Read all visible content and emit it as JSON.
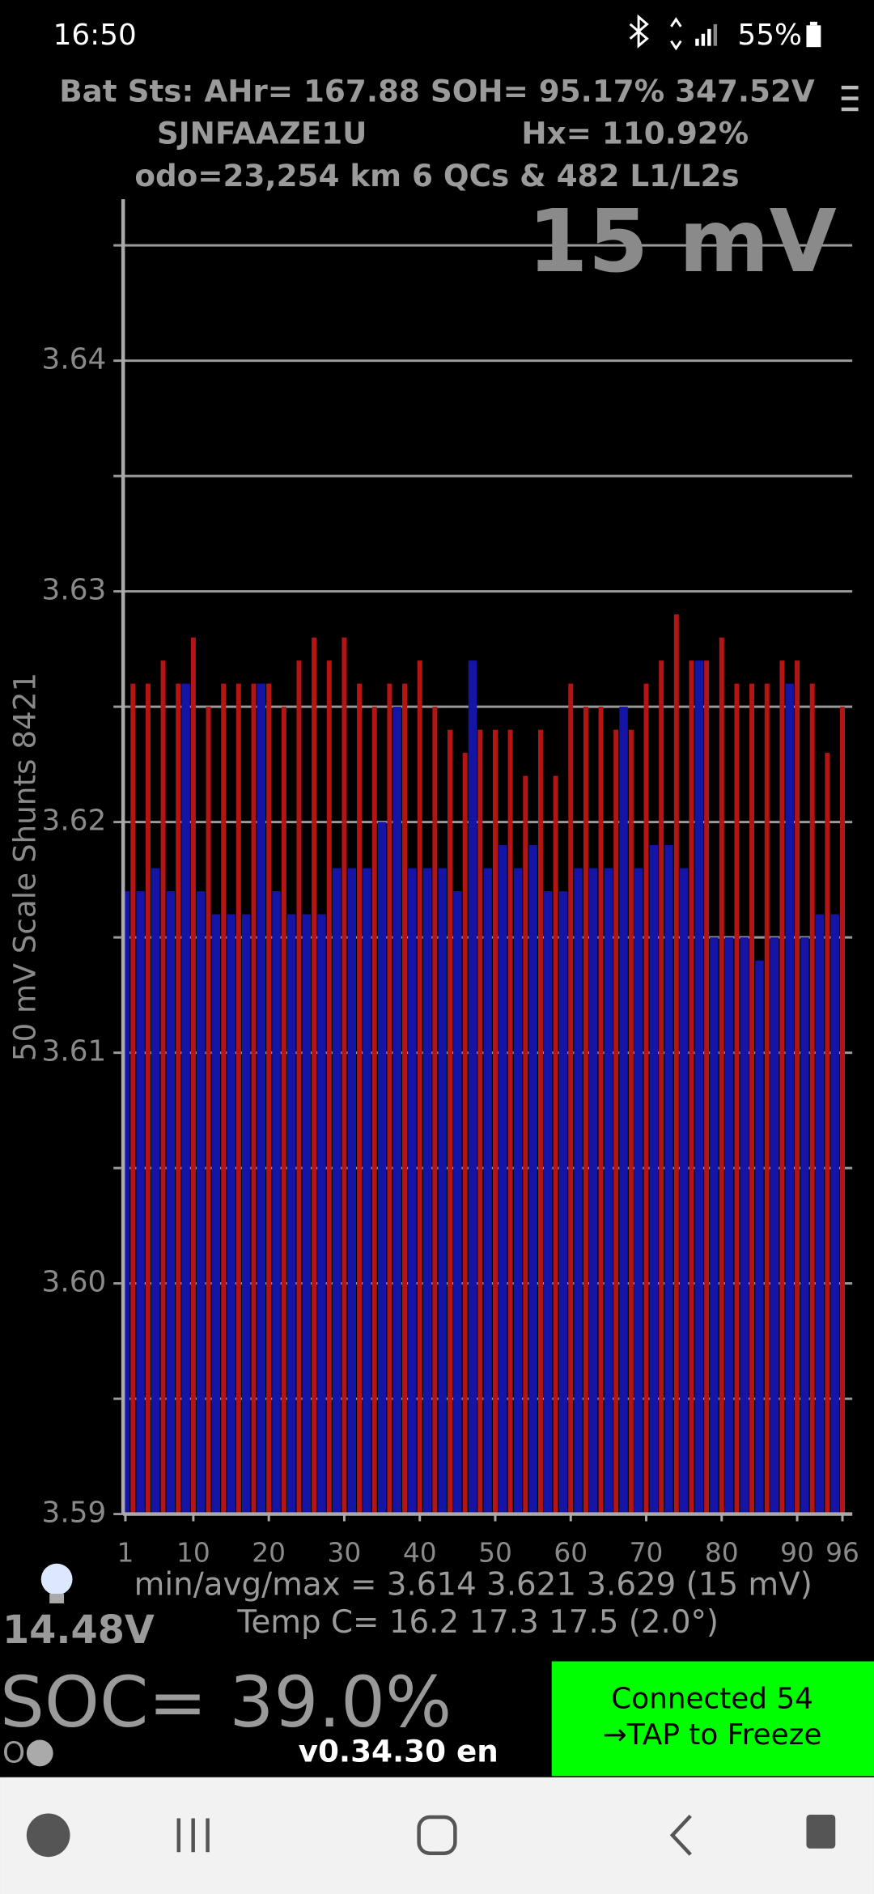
{
  "status_bar": {
    "time": "16:50",
    "battery": "55%"
  },
  "header": {
    "line1": "Bat Sts: AHr= 167.88 SOH= 95.17% 347.52V",
    "vin": "SJNFAAZE1U",
    "hx": "Hx= 110.92%",
    "line3": "odo=23,254 km  6 QCs & 482 L1/L2s"
  },
  "chart_data": {
    "type": "bar",
    "annotation": "15 mV",
    "y_label": "50 mV Scale   Shunts 8421",
    "x": [
      1,
      2,
      3,
      4,
      5,
      6,
      7,
      8,
      9,
      10,
      11,
      12,
      13,
      14,
      15,
      16,
      17,
      18,
      19,
      20,
      21,
      22,
      23,
      24,
      25,
      26,
      27,
      28,
      29,
      30,
      31,
      32,
      33,
      34,
      35,
      36,
      37,
      38,
      39,
      40,
      41,
      42,
      43,
      44,
      45,
      46,
      47,
      48,
      49,
      50,
      51,
      52,
      53,
      54,
      55,
      56,
      57,
      58,
      59,
      60,
      61,
      62,
      63,
      64,
      65,
      66,
      67,
      68,
      69,
      70,
      71,
      72,
      73,
      74,
      75,
      76,
      77,
      78,
      79,
      80,
      81,
      82,
      83,
      84,
      85,
      86,
      87,
      88,
      89,
      90,
      91,
      92,
      93,
      94,
      95,
      96
    ],
    "values": [
      3.617,
      3.626,
      3.617,
      3.626,
      3.618,
      3.627,
      3.617,
      3.626,
      3.626,
      3.628,
      3.617,
      3.625,
      3.616,
      3.626,
      3.616,
      3.626,
      3.616,
      3.626,
      3.626,
      3.626,
      3.617,
      3.625,
      3.616,
      3.627,
      3.616,
      3.628,
      3.616,
      3.627,
      3.618,
      3.628,
      3.618,
      3.626,
      3.618,
      3.625,
      3.62,
      3.626,
      3.625,
      3.626,
      3.618,
      3.627,
      3.618,
      3.625,
      3.618,
      3.624,
      3.617,
      3.623,
      3.627,
      3.624,
      3.618,
      3.624,
      3.619,
      3.624,
      3.618,
      3.622,
      3.619,
      3.624,
      3.617,
      3.622,
      3.617,
      3.626,
      3.618,
      3.625,
      3.618,
      3.625,
      3.618,
      3.624,
      3.625,
      3.624,
      3.618,
      3.626,
      3.619,
      3.627,
      3.619,
      3.629,
      3.618,
      3.627,
      3.627,
      3.627,
      3.615,
      3.628,
      3.615,
      3.626,
      3.615,
      3.626,
      3.614,
      3.626,
      3.615,
      3.627,
      3.626,
      3.627,
      3.615,
      3.626,
      3.616,
      3.623,
      3.616,
      3.625
    ],
    "bar_colors": [
      "#1414a6",
      "#b41414"
    ],
    "xlim": [
      0.7,
      97.3
    ],
    "xticks": [
      1,
      10,
      20,
      30,
      40,
      50,
      60,
      70,
      80,
      90,
      96
    ],
    "ylim": [
      3.59,
      3.647
    ],
    "yticks": [
      3.59,
      {
        "value": 3.6,
        "label": "3.60"
      },
      3.61,
      3.62,
      3.63,
      3.64
    ],
    "minor_grid": [
      3.595,
      3.605,
      3.615,
      3.625,
      3.635,
      3.645
    ],
    "grid": true
  },
  "footer": {
    "pack_voltage": "14.48V",
    "stats": "min/avg/max = 3.614 3.621 3.629  (15 mV)",
    "temp": "Temp C= 16.2  17.3  17.5  (2.0°)",
    "soc": "SOC= 39.0%",
    "mode": "O",
    "version": "v0.34.30 en",
    "button_line1": "Connected 54",
    "button_line2": "→TAP to Freeze"
  }
}
